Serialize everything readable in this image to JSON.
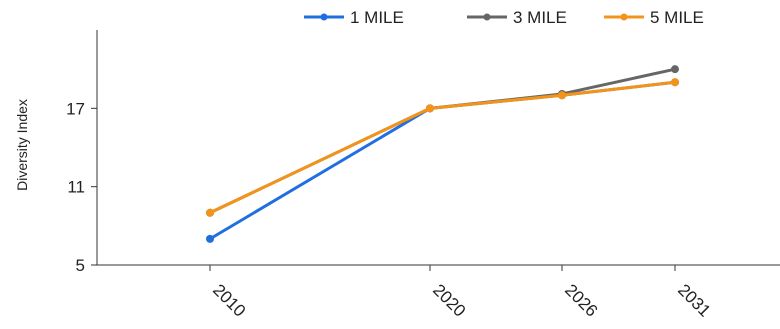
{
  "chart_data": {
    "type": "line",
    "title": "",
    "xlabel": "",
    "ylabel": "Diversity Index",
    "x": [
      2010,
      2020,
      2026,
      2031
    ],
    "x_tick_labels": [
      "2010",
      "2020",
      "2026",
      "2031"
    ],
    "y_ticks": [
      5,
      11,
      17
    ],
    "y_tick_labels": [
      "5",
      "11",
      "17"
    ],
    "ylim": [
      5,
      23
    ],
    "grid": false,
    "legend_position": "top-right",
    "series": [
      {
        "name": "1 MILE",
        "color": "#1f6fe0",
        "values": [
          7.0,
          17.0,
          18.0,
          19.0
        ]
      },
      {
        "name": "3 MILE",
        "color": "#666666",
        "values": [
          9.0,
          17.0,
          18.1,
          20.0
        ]
      },
      {
        "name": "5 MILE",
        "color": "#f39419",
        "values": [
          9.0,
          17.0,
          18.0,
          19.0
        ]
      }
    ]
  }
}
